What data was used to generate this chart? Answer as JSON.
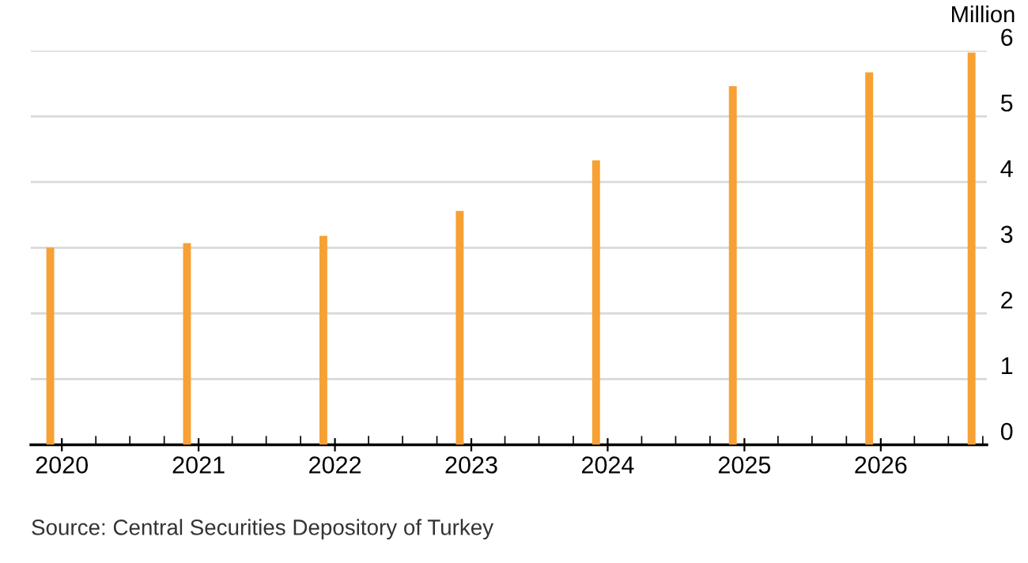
{
  "chart_data": {
    "type": "bar",
    "x": [
      "2019-12",
      "2020-12",
      "2021-12",
      "2022-12",
      "2023-12",
      "2024-12",
      "2025-12",
      "2026-09"
    ],
    "values": [
      3.0,
      3.07,
      3.18,
      3.56,
      4.33,
      5.46,
      5.67,
      5.97
    ],
    "color": "#f7a134",
    "xlim": [
      "2019-10-10",
      "2026-10-12"
    ],
    "xticks": [
      {
        "value": "2020-01-01",
        "label": "2020"
      },
      {
        "value": "2021-01-01",
        "label": "2021"
      },
      {
        "value": "2022-01-01",
        "label": "2022"
      },
      {
        "value": "2023-01-01",
        "label": "2023"
      },
      {
        "value": "2024-01-01",
        "label": "2024"
      },
      {
        "value": "2025-01-01",
        "label": "2025"
      },
      {
        "value": "2026-01-01",
        "label": "2026"
      }
    ],
    "ylim": [
      0,
      6
    ],
    "yticks": [
      0,
      1,
      2,
      3,
      4,
      5,
      6
    ],
    "ylabel": "Million",
    "grid": "y",
    "annotations": [
      "Source: Central Securities Depository of Turkey"
    ]
  }
}
